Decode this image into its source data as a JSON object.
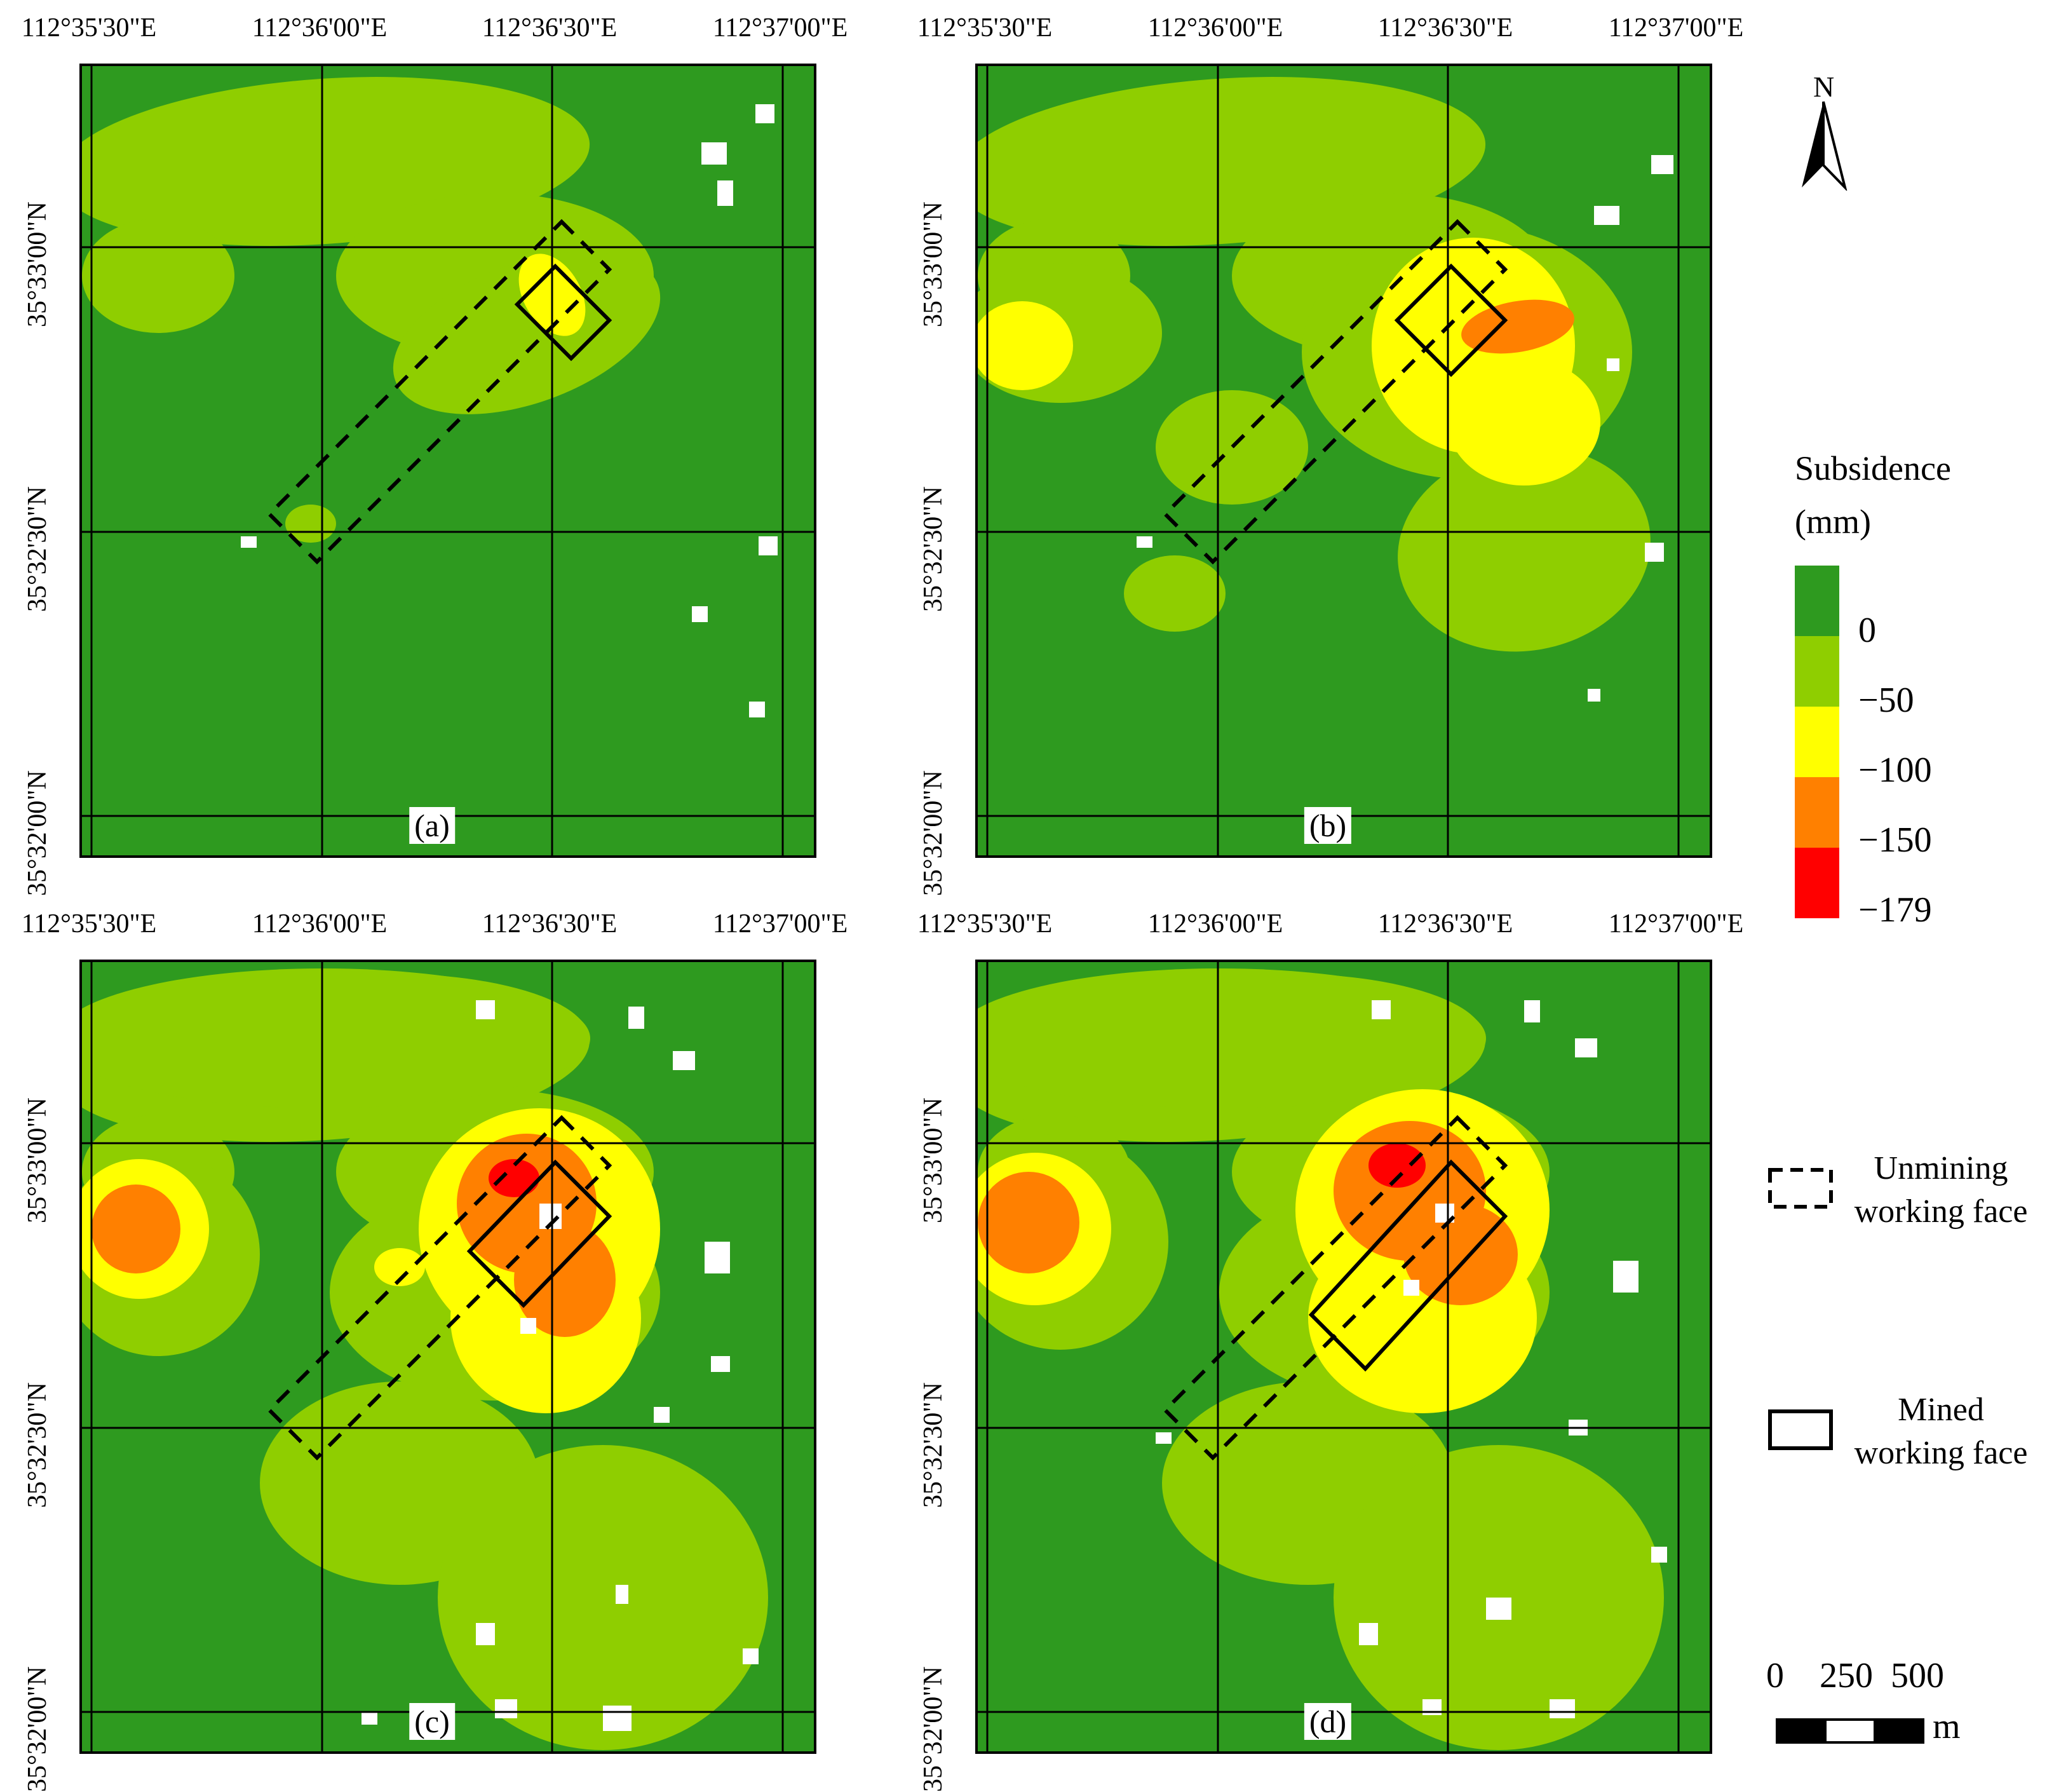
{
  "figure": {
    "lon_ticks": [
      "112°35'30\"E",
      "112°36'00\"E",
      "112°36'30\"E",
      "112°37'00\"E"
    ],
    "lat_ticks": [
      "35°33'00\"N",
      "35°32'30\"N",
      "35°32'00\"N"
    ],
    "panels": [
      {
        "label": "(a)",
        "stage": "a"
      },
      {
        "label": "(b)",
        "stage": "b"
      },
      {
        "label": "(c)",
        "stage": "c"
      },
      {
        "label": "(d)",
        "stage": "d"
      }
    ]
  },
  "legend": {
    "title_line1": "Subsidence",
    "title_line2": "(mm)",
    "ramp": [
      {
        "label": "0",
        "color": "#2e9a1f"
      },
      {
        "label": "−50",
        "color": "#8fce00"
      },
      {
        "label": "−100",
        "color": "#ffff00"
      },
      {
        "label": "−150",
        "color": "#ff8000"
      },
      {
        "label": "−179",
        "color": "#ff0000"
      }
    ],
    "north_label": "N",
    "unmining_line1": "Unmining",
    "unmining_line2": "working face",
    "mined_line1": "Mined",
    "mined_line2": "working face",
    "scale_labels": [
      "0",
      "250",
      "500"
    ],
    "scale_unit": "m"
  }
}
